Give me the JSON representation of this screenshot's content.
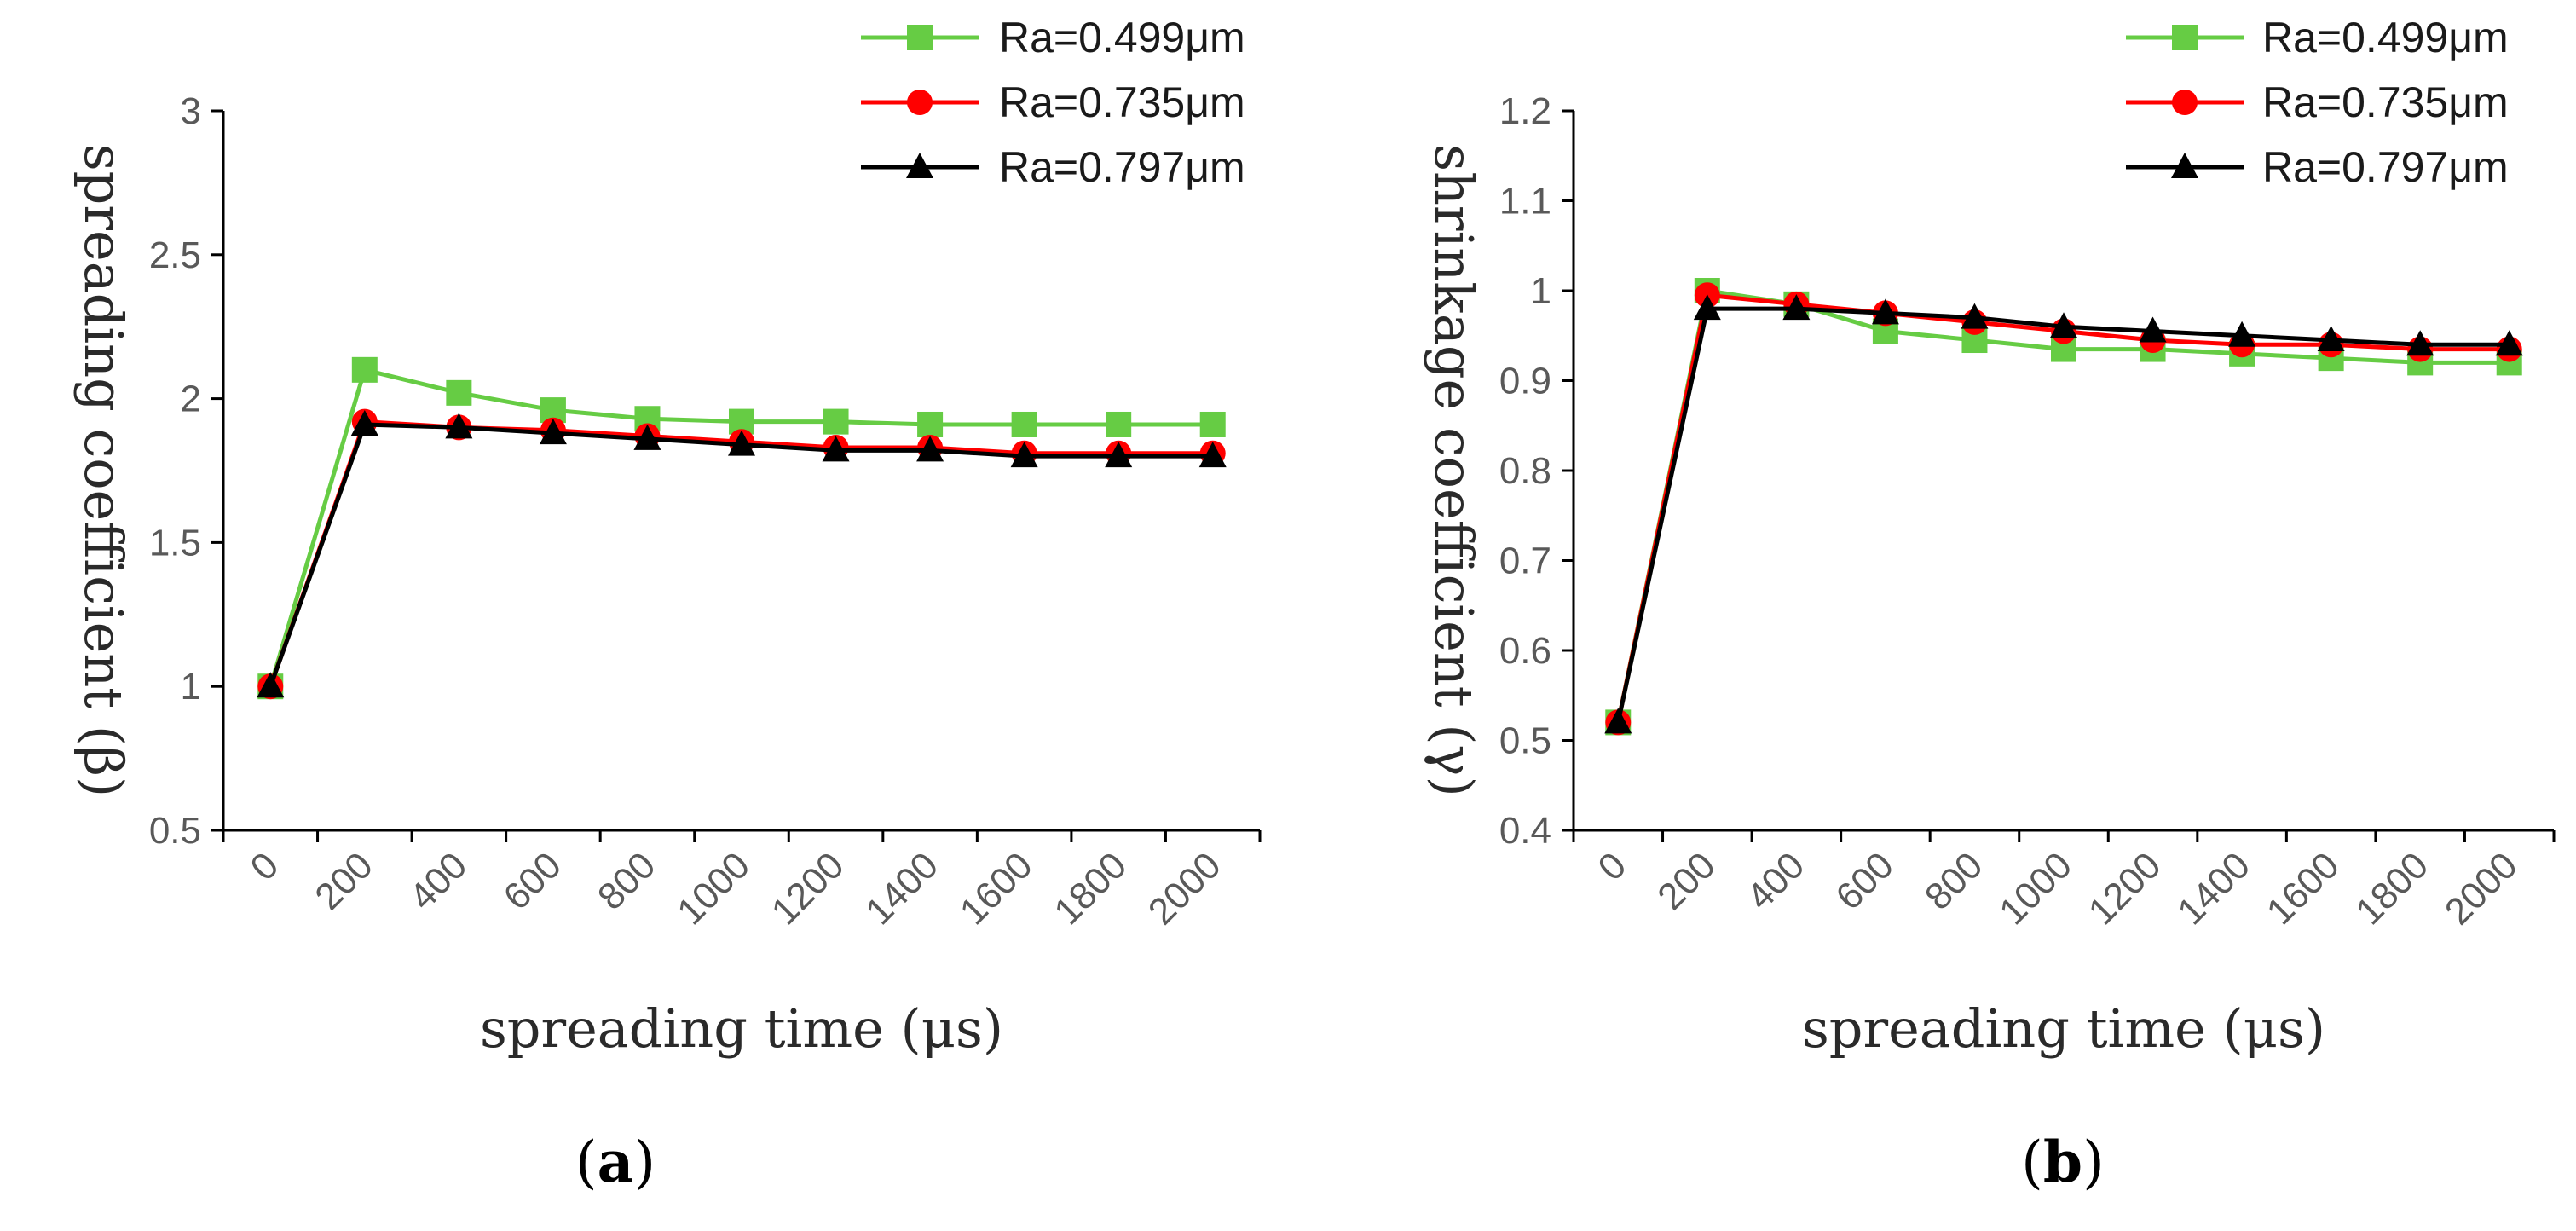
{
  "chart_data": [
    {
      "type": "line",
      "caption": "a",
      "xlabel": "spreading time (μs)",
      "ylabel": "spreading coefficient (β)",
      "categories": [
        "0",
        "200",
        "400",
        "600",
        "800",
        "1000",
        "1200",
        "1400",
        "1600",
        "1800",
        "2000"
      ],
      "yticks": [
        "0.5",
        "1",
        "1.5",
        "2",
        "2.5",
        "3"
      ],
      "ylim": [
        0.5,
        3
      ],
      "legend_position": "top-right",
      "grid": false,
      "series": [
        {
          "name": "Ra=0.499μm",
          "color": "#66CC44",
          "marker": "square",
          "values": [
            1.0,
            2.1,
            2.02,
            1.96,
            1.93,
            1.92,
            1.92,
            1.91,
            1.91,
            1.91,
            1.91
          ]
        },
        {
          "name": "Ra=0.735μm",
          "color": "#FF0000",
          "marker": "circle",
          "values": [
            1.0,
            1.92,
            1.9,
            1.89,
            1.87,
            1.85,
            1.83,
            1.83,
            1.81,
            1.81,
            1.81
          ]
        },
        {
          "name": "Ra=0.797μm",
          "color": "#000000",
          "marker": "triangle",
          "values": [
            1.0,
            1.91,
            1.9,
            1.88,
            1.86,
            1.84,
            1.82,
            1.82,
            1.8,
            1.8,
            1.8
          ]
        }
      ]
    },
    {
      "type": "line",
      "caption": "b",
      "xlabel": "spreading time (μs)",
      "ylabel": "shrinkage coefficient (γ)",
      "categories": [
        "0",
        "200",
        "400",
        "600",
        "800",
        "1000",
        "1200",
        "1400",
        "1600",
        "1800",
        "2000"
      ],
      "yticks": [
        "0.4",
        "0.5",
        "0.6",
        "0.7",
        "0.8",
        "0.9",
        "1",
        "1.1",
        "1.2"
      ],
      "ylim": [
        0.4,
        1.2
      ],
      "legend_position": "top-right",
      "grid": false,
      "series": [
        {
          "name": "Ra=0.499μm",
          "color": "#66CC44",
          "marker": "square",
          "values": [
            0.52,
            1.0,
            0.985,
            0.955,
            0.945,
            0.935,
            0.935,
            0.93,
            0.925,
            0.92,
            0.92
          ]
        },
        {
          "name": "Ra=0.735μm",
          "color": "#FF0000",
          "marker": "circle",
          "values": [
            0.52,
            0.995,
            0.985,
            0.975,
            0.965,
            0.955,
            0.945,
            0.94,
            0.94,
            0.935,
            0.935
          ]
        },
        {
          "name": "Ra=0.797μm",
          "color": "#000000",
          "marker": "triangle",
          "values": [
            0.52,
            0.98,
            0.98,
            0.975,
            0.97,
            0.96,
            0.955,
            0.95,
            0.945,
            0.94,
            0.94
          ]
        }
      ]
    }
  ]
}
